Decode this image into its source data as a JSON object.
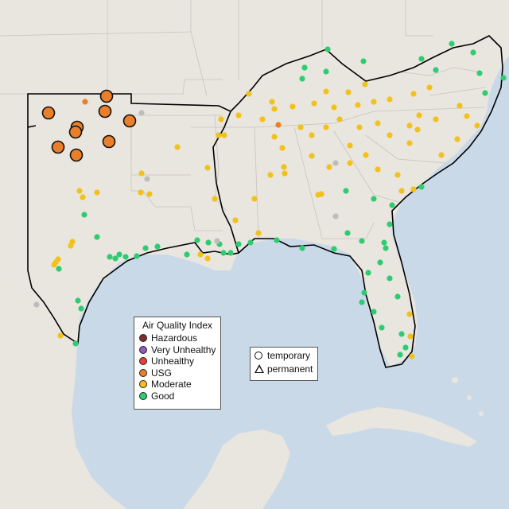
{
  "map": {
    "colors": {
      "water": "#c9d9e8",
      "land": "#e9e5df",
      "land_outside": "#efece7",
      "border": "#c8c3bd",
      "region_outline": "#000000"
    },
    "aqi_colors": {
      "Hazardous": "#7e2d2d",
      "Very Unhealthy": "#8f5fb8",
      "Unhealthy": "#e8403a",
      "USG": "#ea7f2a",
      "Moderate": "#f2c11a",
      "Good": "#2ecc71",
      "No data": "#bdbdbd"
    }
  },
  "legend": {
    "title": "Air Quality Index",
    "items": [
      {
        "label": "Hazardous",
        "color": "#7e2d2d"
      },
      {
        "label": "Very Unhealthy",
        "color": "#8f5fb8"
      },
      {
        "label": "Unhealthy",
        "color": "#e8403a"
      },
      {
        "label": "USG",
        "color": "#ea7f2a"
      },
      {
        "label": "Moderate",
        "color": "#f2c11a"
      },
      {
        "label": "Good",
        "color": "#2ecc71"
      }
    ]
  },
  "type_legend": {
    "items": [
      {
        "label": "temporary",
        "shape": "circle"
      },
      {
        "label": "permanent",
        "shape": "triangle"
      }
    ]
  }
}
